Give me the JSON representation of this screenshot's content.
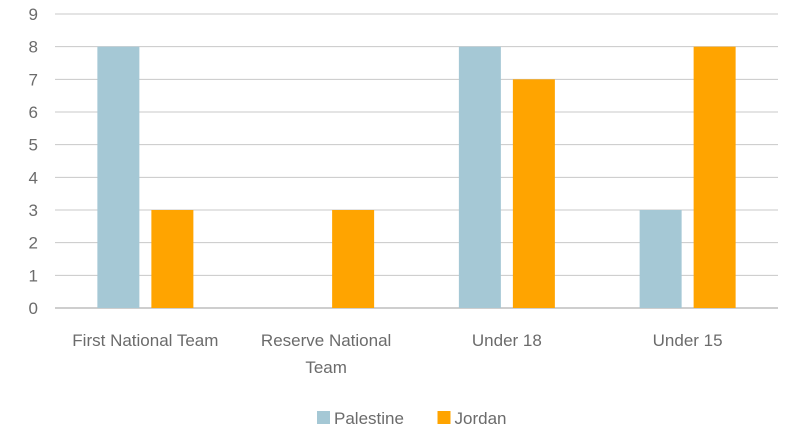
{
  "chart_data": {
    "type": "bar",
    "categories": [
      "First National Team",
      "Reserve National Team",
      "Under 18",
      "Under 15"
    ],
    "category_label_lines": [
      [
        "First National Team"
      ],
      [
        "Reserve National",
        "Team"
      ],
      [
        "Under 18"
      ],
      [
        "Under 15"
      ]
    ],
    "series": [
      {
        "name": "Palestine",
        "color": "#A5C8D5",
        "values": [
          8,
          0,
          8,
          3
        ]
      },
      {
        "name": "Jordan",
        "color": "#FFA400",
        "values": [
          3,
          3,
          7,
          8
        ]
      }
    ],
    "ylim": [
      0,
      9
    ],
    "yticks": [
      "0",
      "1",
      "2",
      "3",
      "4",
      "5",
      "6",
      "7",
      "8",
      "9"
    ],
    "grid": true,
    "legend": "bottom"
  }
}
